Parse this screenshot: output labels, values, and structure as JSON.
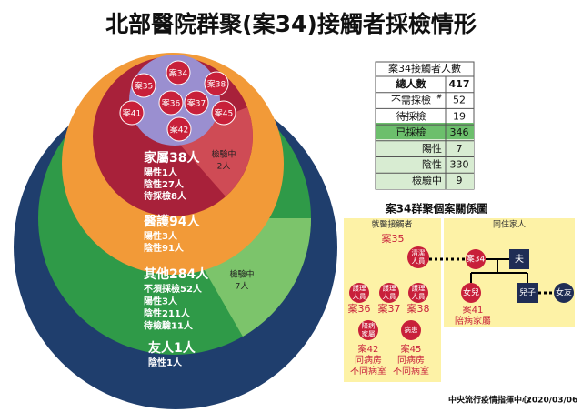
{
  "title": "北部醫院群聚(案34)接觸者採檢情形",
  "circles": {
    "cases": [
      "案34",
      "案35",
      "案38",
      "案36",
      "案37",
      "案41",
      "案45",
      "案42"
    ],
    "family": {
      "label": "家屬38人",
      "lines": [
        "陽性1人",
        "陰性27人",
        "待採檢8人"
      ],
      "testing": [
        "檢驗中",
        "2人"
      ]
    },
    "medical": {
      "label": "醫護94人",
      "lines": [
        "陽性3人",
        "陰性91人"
      ]
    },
    "other": {
      "label": "其他284人",
      "lines": [
        "不須採檢52人",
        "陽性3人",
        "陰性211人",
        "待檢驗11人"
      ],
      "testing": [
        "檢驗中",
        "7人"
      ]
    },
    "friend": {
      "label": "友人1人",
      "lines": [
        "陰性1人"
      ]
    }
  },
  "table": {
    "header": "案34接觸者人數",
    "rows": [
      {
        "label": "總人數",
        "value": 417
      },
      {
        "label": "不需採檢",
        "note": "#",
        "value": 52
      },
      {
        "label": "待採檢",
        "value": 19
      },
      {
        "label": "已採檢",
        "value": 346
      },
      {
        "label": "陽性",
        "value": 7
      },
      {
        "label": "陰性",
        "value": 330
      },
      {
        "label": "檢驗中",
        "value": 9
      }
    ]
  },
  "diagram": {
    "title": "案34群聚個案關係圖",
    "groups": [
      "就醫接觸者",
      "同住家人"
    ],
    "case35": {
      "label": "案35",
      "icon": [
        "清潔",
        "人員"
      ]
    },
    "nurses": [
      {
        "icon": [
          "護理",
          "人員"
        ],
        "label": "案36"
      },
      {
        "icon": [
          "護理",
          "人員"
        ],
        "label": "案37"
      },
      {
        "icon": [
          "護理",
          "人員"
        ],
        "label": "案38"
      }
    ],
    "ward": [
      {
        "icon": [
          "陪病",
          "家屬"
        ],
        "lines": [
          "案42",
          "同病房",
          "不同病室"
        ]
      },
      {
        "icon": [
          "病患"
        ],
        "lines": [
          "案45",
          "同病房",
          "不同病室"
        ]
      }
    ],
    "family": {
      "case34": "案34",
      "husband": "夫",
      "daughter": "女兒",
      "son": "兒子",
      "girlfriend": "女友",
      "daughter_lines": [
        "案41",
        "陪病家屬"
      ]
    }
  },
  "footer": {
    "org": "中央流行疫情指揮中心",
    "date": "2020/03/06"
  }
}
